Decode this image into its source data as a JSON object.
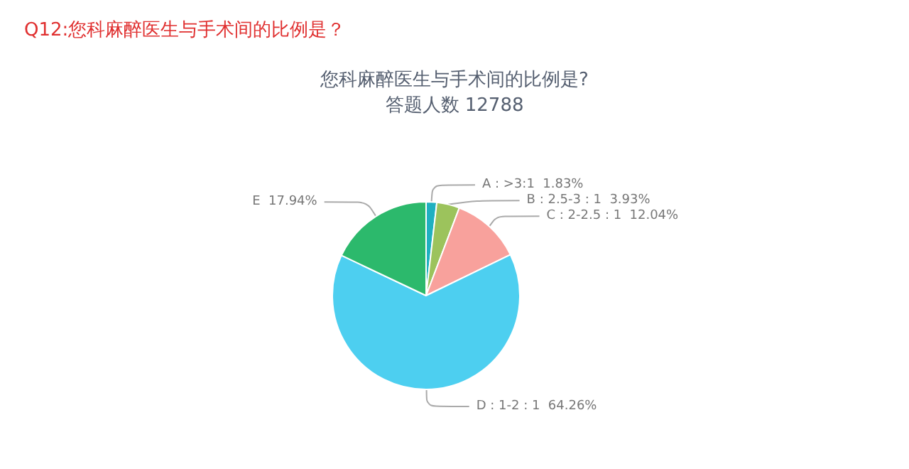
{
  "chart_data": {
    "type": "pie",
    "title": "Q12:您科麻醉医生与手术间的比例是？",
    "subtitle": "您科麻醉医生与手术间的比例是?",
    "annotations": [
      "答题人数 12788"
    ],
    "categories": [
      "A : >3:1",
      "B : 2.5-3 : 1",
      "C : 2-2.5 : 1",
      "D : 1-2 : 1",
      "E"
    ],
    "values": [
      1.83,
      3.93,
      12.04,
      64.26,
      17.94
    ],
    "colors": [
      "#1fb0c0",
      "#9cc35c",
      "#f8a19c",
      "#4dcff0",
      "#2cb96c"
    ],
    "value_labels": [
      "1.83%",
      "3.93%",
      "12.04%",
      "64.26%",
      "17.94%"
    ],
    "legend": false
  }
}
